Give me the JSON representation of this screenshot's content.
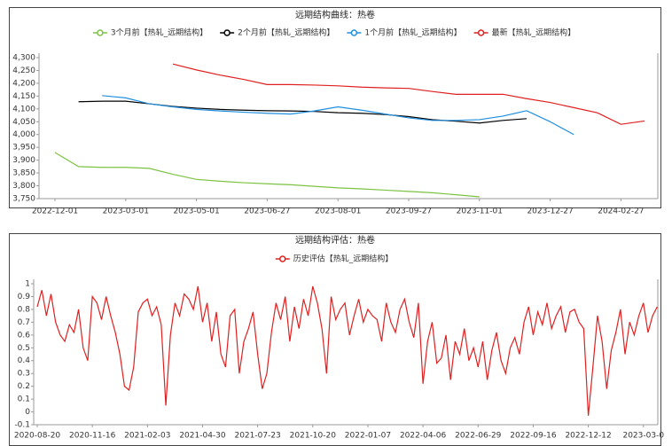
{
  "chart_data": [
    {
      "type": "line",
      "title": "远期结构曲线：热卷",
      "legend": "top",
      "grid": false,
      "categories": [
        "2022-12-01",
        null,
        null,
        "2023-03-01",
        null,
        null,
        "2023-05-01",
        null,
        null,
        "2023-06-27",
        null,
        null,
        "2023-08-01",
        null,
        null,
        "2023-09-27",
        null,
        null,
        "2023-11-01",
        null,
        null,
        "2023-12-27",
        null,
        null,
        "2024-02-27",
        null
      ],
      "ylim": [
        3750,
        4300
      ],
      "yticks": [
        {
          "value": 3750,
          "label": "3,750"
        },
        {
          "value": 3800,
          "label": "3,800"
        },
        {
          "value": 3850,
          "label": "3,850"
        },
        {
          "value": 3900,
          "label": "3,900"
        },
        {
          "value": 3950,
          "label": "3,950"
        },
        {
          "value": 4000,
          "label": "4,000"
        },
        {
          "value": 4050,
          "label": "4,050"
        },
        {
          "value": 4100,
          "label": "4,100"
        },
        {
          "value": 4150,
          "label": "4,150"
        },
        {
          "value": 4200,
          "label": "4,200"
        },
        {
          "value": 4250,
          "label": "4,250"
        },
        {
          "value": 4300,
          "label": "4,300"
        }
      ],
      "series": [
        {
          "name": "3个月前【热轧_远期结构】",
          "color": "#7dc242",
          "values": [
            3930,
            3875,
            3872,
            3872,
            3868,
            3845,
            3825,
            3818,
            3812,
            3808,
            3804,
            3798,
            3792,
            3788,
            3783,
            3778,
            3773,
            3765,
            3757,
            null,
            null,
            null,
            null,
            null,
            null,
            null
          ]
        },
        {
          "name": "2个月前【热轧_远期结构】",
          "color": "#000000",
          "values": [
            null,
            4128,
            4130,
            4130,
            4120,
            4110,
            4103,
            4098,
            4095,
            4093,
            4092,
            4090,
            4085,
            4083,
            4078,
            4070,
            4058,
            4052,
            4045,
            4055,
            4062,
            null,
            null,
            null,
            null,
            null
          ]
        },
        {
          "name": "1个月前【热轧_远期结构】",
          "color": "#1f8fe0",
          "values": [
            null,
            null,
            4152,
            4143,
            4120,
            4108,
            4098,
            4092,
            4087,
            4083,
            4080,
            4092,
            4108,
            4095,
            4080,
            4065,
            4055,
            4055,
            4058,
            4072,
            4093,
            4050,
            4000,
            null,
            null,
            null
          ]
        },
        {
          "name": "最新【热轧_远期结构】",
          "color": "#e02020",
          "values": [
            null,
            null,
            null,
            null,
            null,
            4275,
            4252,
            4232,
            4215,
            4195,
            4195,
            4193,
            4190,
            4185,
            4182,
            4180,
            4168,
            4157,
            4157,
            4157,
            4140,
            4125,
            4105,
            4085,
            4040,
            4053
          ]
        }
      ]
    },
    {
      "type": "line",
      "title": "远期结构评估：热卷",
      "legend": "top",
      "grid": false,
      "categories": [
        "2020-08-20",
        null,
        null,
        null,
        null,
        null,
        null,
        null,
        null,
        null,
        null,
        null,
        "2020-11-16",
        null,
        null,
        null,
        null,
        null,
        null,
        null,
        null,
        null,
        null,
        null,
        "2021-02-03",
        null,
        null,
        null,
        null,
        null,
        null,
        null,
        null,
        null,
        null,
        null,
        "2021-04-30",
        null,
        null,
        null,
        null,
        null,
        null,
        null,
        null,
        null,
        null,
        null,
        "2021-07-23",
        null,
        null,
        null,
        null,
        null,
        null,
        null,
        null,
        null,
        null,
        null,
        "2021-10-20",
        null,
        null,
        null,
        null,
        null,
        null,
        null,
        null,
        null,
        null,
        null,
        "2022-01-07",
        null,
        null,
        null,
        null,
        null,
        null,
        null,
        null,
        null,
        null,
        null,
        "2022-04-06",
        null,
        null,
        null,
        null,
        null,
        null,
        null,
        null,
        null,
        null,
        null,
        "2022-06-29",
        null,
        null,
        null,
        null,
        null,
        null,
        null,
        null,
        null,
        null,
        null,
        "2022-09-16",
        null,
        null,
        null,
        null,
        null,
        null,
        null,
        null,
        null,
        null,
        null,
        "2022-12-12",
        null,
        null,
        null,
        null,
        null,
        null,
        null,
        null,
        null,
        null,
        null,
        "2023-03-0",
        null,
        null,
        null
      ],
      "ylim": [
        -0.1,
        1
      ],
      "yticks": [
        -0.1,
        0,
        0.1,
        0.2,
        0.3,
        0.4,
        0.5,
        0.6,
        0.7,
        0.8,
        0.9,
        1
      ],
      "series": [
        {
          "name": "历史评估【热轧_远期结构】",
          "color": "#e02020",
          "values": [
            0.82,
            0.95,
            0.75,
            0.92,
            0.7,
            0.6,
            0.55,
            0.68,
            0.62,
            0.8,
            0.5,
            0.4,
            0.9,
            0.85,
            0.72,
            0.9,
            0.75,
            0.62,
            0.45,
            0.2,
            0.17,
            0.35,
            0.78,
            0.85,
            0.88,
            0.75,
            0.82,
            0.68,
            0.05,
            0.6,
            0.85,
            0.75,
            0.92,
            0.88,
            0.8,
            0.98,
            0.7,
            0.85,
            0.55,
            0.78,
            0.45,
            0.35,
            0.75,
            0.8,
            0.3,
            0.55,
            0.65,
            0.78,
            0.45,
            0.18,
            0.3,
            0.62,
            0.85,
            0.72,
            0.9,
            0.55,
            0.82,
            0.65,
            0.88,
            0.75,
            0.98,
            0.85,
            0.65,
            0.3,
            0.9,
            0.72,
            0.8,
            0.85,
            0.6,
            0.75,
            0.88,
            0.7,
            0.8,
            0.75,
            0.72,
            0.55,
            0.85,
            0.7,
            0.62,
            0.8,
            0.88,
            0.7,
            0.58,
            0.85,
            0.22,
            0.55,
            0.7,
            0.38,
            0.42,
            0.6,
            0.25,
            0.55,
            0.45,
            0.65,
            0.4,
            0.5,
            0.35,
            0.55,
            0.25,
            0.48,
            0.62,
            0.4,
            0.3,
            0.5,
            0.58,
            0.45,
            0.7,
            0.82,
            0.6,
            0.78,
            0.68,
            0.85,
            0.65,
            0.75,
            0.82,
            0.62,
            0.78,
            0.8,
            0.7,
            0.65,
            -0.03,
            0.35,
            0.75,
            0.55,
            0.18,
            0.48,
            0.62,
            0.8,
            0.45,
            0.7,
            0.6,
            0.75,
            0.85,
            0.62,
            0.75,
            0.82
          ]
        }
      ]
    }
  ]
}
